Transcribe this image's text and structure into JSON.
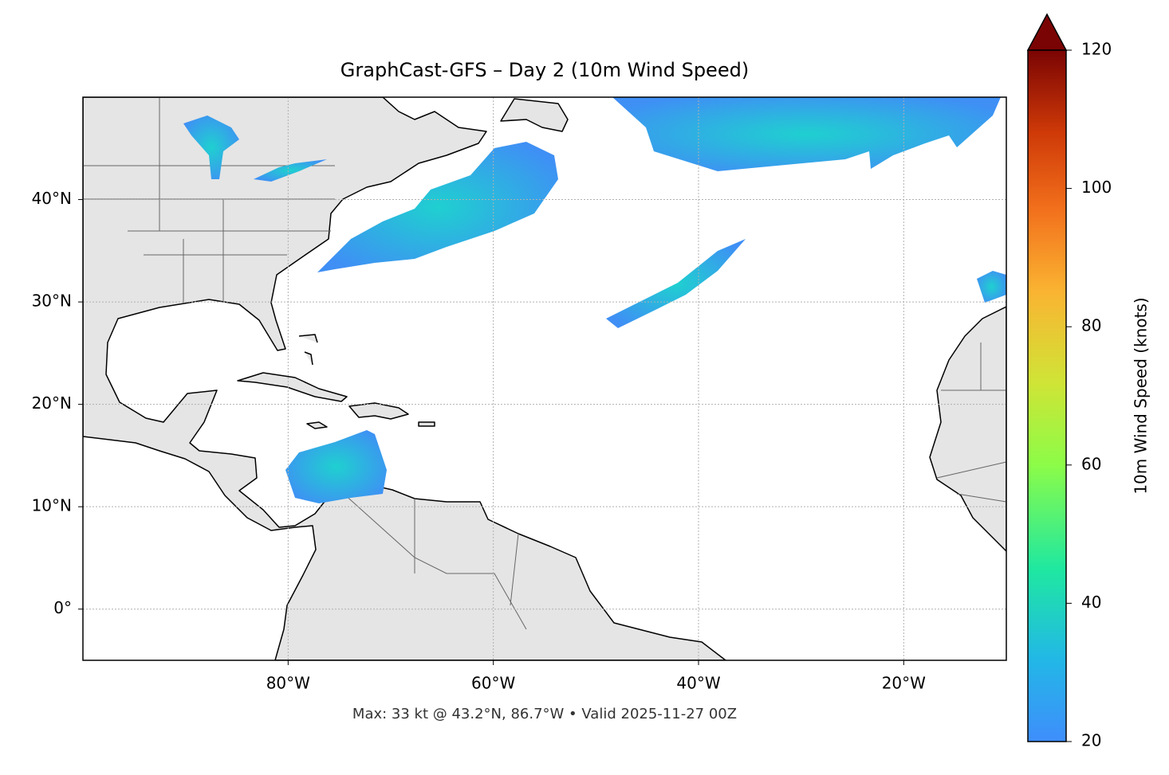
{
  "chart_data": {
    "type": "map",
    "title": "GraphCast-GFS – Day 2 (10m Wind Speed)",
    "xlim": [
      -100,
      -10
    ],
    "xticks": [
      {
        "value": -80,
        "label": "80°W"
      },
      {
        "value": -60,
        "label": "60°W"
      },
      {
        "value": -40,
        "label": "40°W"
      },
      {
        "value": -20,
        "label": "20°W"
      }
    ],
    "ylim": [
      -5,
      50
    ],
    "yticks": [
      {
        "value": 0,
        "label": "0°"
      },
      {
        "value": 10,
        "label": "10°N"
      },
      {
        "value": 20,
        "label": "20°N"
      },
      {
        "value": 30,
        "label": "30°N"
      },
      {
        "value": 40,
        "label": "40°N"
      }
    ],
    "grid": true,
    "colorbar": {
      "label": "10m Wind Speed (knots)",
      "lim": [
        20,
        120
      ],
      "ticks": [
        20,
        40,
        60,
        80,
        100,
        120
      ],
      "colormap": "turbo",
      "extend": "max"
    },
    "footnote": "Max: 33 kt @ 43.2°N, 86.7°W • Valid 2025-11-27 00Z"
  }
}
